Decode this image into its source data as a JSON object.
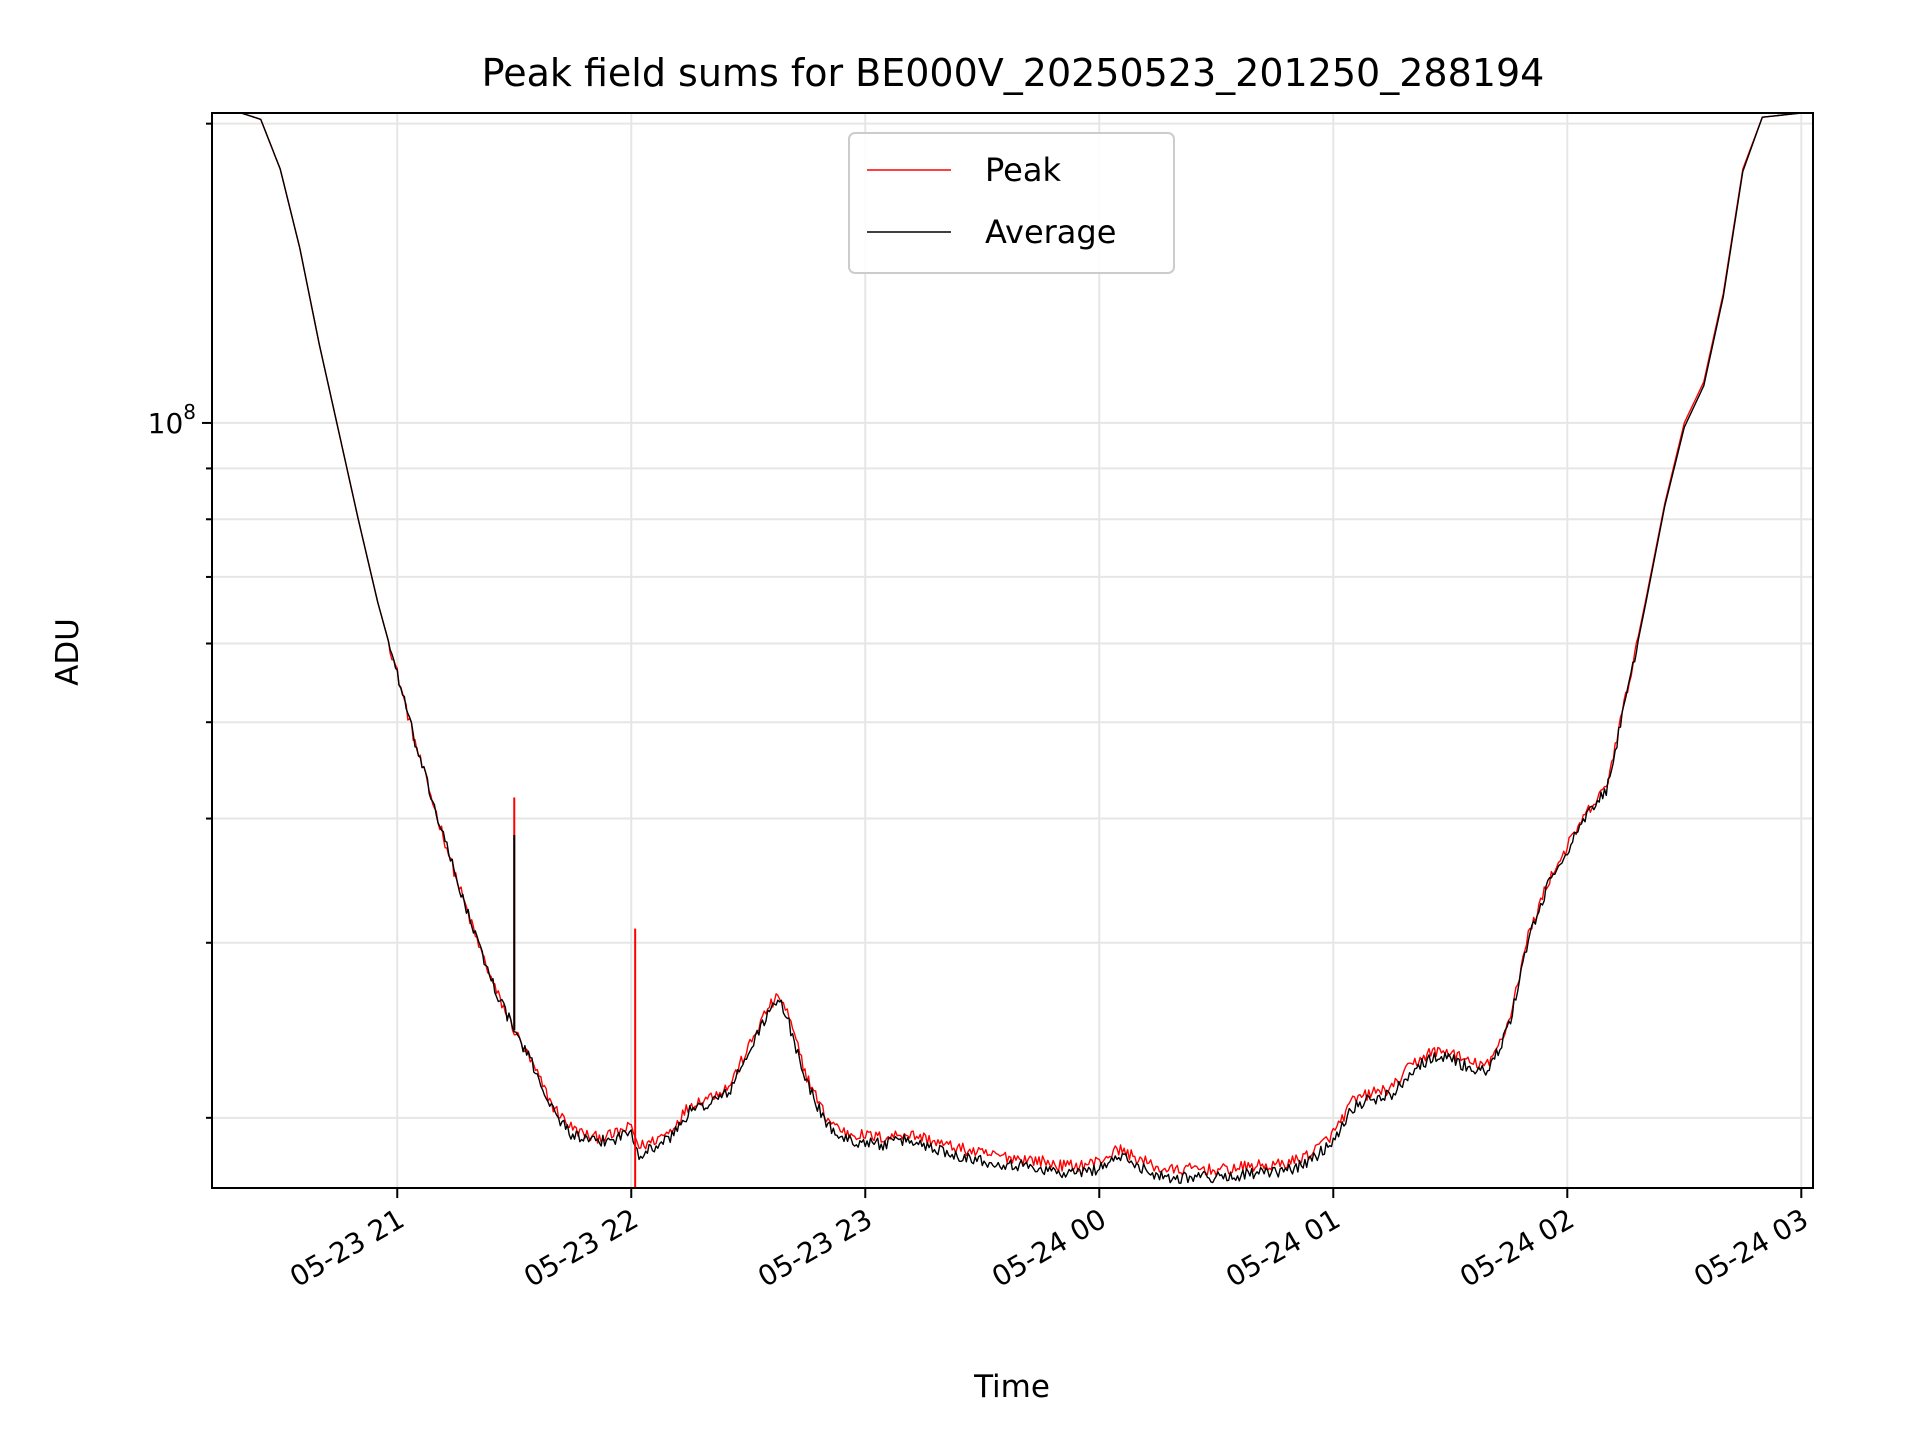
{
  "chart_data": {
    "type": "line",
    "title": "Peak field sums for BE000V_20250523_201250_288194",
    "xlabel": "Time",
    "ylabel": "ADU",
    "x_ticks": [
      "05-23 21",
      "05-23 22",
      "05-23 23",
      "05-24 00",
      "05-24 01",
      "05-24 02",
      "05-24 03"
    ],
    "y_tick_labels": [
      {
        "base": "10",
        "exp": "8",
        "value": 100000000
      }
    ],
    "y_scale": "log",
    "xlim": [
      "2025-05-23 20:12:30",
      "2025-05-24 03:03:00"
    ],
    "ylim": [
      17000000,
      205000000
    ],
    "grid": true,
    "legend_position": "top-center",
    "x": [
      "20:12",
      "20:20",
      "20:25",
      "20:30",
      "20:35",
      "20:40",
      "20:45",
      "20:50",
      "20:55",
      "21:00",
      "21:05",
      "21:10",
      "21:15",
      "21:20",
      "21:25",
      "21:30",
      "21:35",
      "21:40",
      "21:45",
      "21:50",
      "21:55",
      "22:00",
      "22:02",
      "22:05",
      "22:10",
      "22:15",
      "22:20",
      "22:25",
      "22:30",
      "22:35",
      "22:38",
      "22:40",
      "22:45",
      "22:50",
      "22:55",
      "23:00",
      "23:05",
      "23:10",
      "23:15",
      "23:20",
      "23:25",
      "23:30",
      "23:35",
      "23:40",
      "23:45",
      "23:50",
      "23:55",
      "00:00",
      "00:05",
      "00:10",
      "00:15",
      "00:20",
      "00:25",
      "00:30",
      "00:35",
      "00:40",
      "00:45",
      "00:50",
      "00:55",
      "01:00",
      "01:05",
      "01:10",
      "01:15",
      "01:20",
      "01:25",
      "01:30",
      "01:35",
      "01:40",
      "01:45",
      "01:50",
      "01:55",
      "02:00",
      "02:05",
      "02:10",
      "02:15",
      "02:20",
      "02:25",
      "02:30",
      "02:35",
      "02:40",
      "02:45",
      "02:50",
      "03:00"
    ],
    "series": [
      {
        "name": "Peak",
        "color": "#ff0000",
        "values": [
          205000000,
          205000000,
          202000000,
          180000000,
          150000000,
          120000000,
          98000000,
          80000000,
          66000000,
          56000000,
          47000000,
          40500000,
          35000000,
          30500000,
          27000000,
          24500000,
          22500000,
          20500000,
          19500000,
          19100000,
          19200000,
          19600000,
          18700000,
          18900000,
          19400000,
          20600000,
          21000000,
          21500000,
          23500000,
          25800000,
          26500000,
          25500000,
          22000000,
          20000000,
          19300000,
          19200000,
          19100000,
          19300000,
          19100000,
          18800000,
          18600000,
          18400000,
          18300000,
          18200000,
          18100000,
          17900000,
          17900000,
          18100000,
          18600000,
          18200000,
          17800000,
          17700000,
          17800000,
          17700000,
          17800000,
          17900000,
          17900000,
          18100000,
          18500000,
          19300000,
          20800000,
          21200000,
          21400000,
          22600000,
          23300000,
          23300000,
          22700000,
          22600000,
          25000000,
          30500000,
          34500000,
          37500000,
          40500000,
          43000000,
          53000000,
          66000000,
          83000000,
          100000000,
          110000000,
          135000000,
          180000000,
          203000000,
          205000000
        ]
      },
      {
        "name": "Average",
        "color": "#000000",
        "values": [
          205000000,
          205000000,
          202000000,
          180000000,
          150000000,
          120000000,
          98000000,
          80000000,
          66000000,
          56000000,
          47000000,
          40500000,
          35000000,
          30500000,
          27000000,
          24500000,
          22500000,
          20300000,
          19200000,
          18900000,
          19000000,
          19400000,
          18400000,
          18600000,
          19100000,
          20300000,
          20700000,
          21200000,
          23200000,
          25500000,
          26200000,
          25200000,
          21700000,
          19700000,
          19000000,
          18900000,
          18800000,
          19000000,
          18800000,
          18500000,
          18300000,
          18100000,
          18000000,
          17900000,
          17800000,
          17600000,
          17600000,
          17800000,
          18300000,
          17900000,
          17500000,
          17400000,
          17500000,
          17400000,
          17500000,
          17600000,
          17600000,
          17800000,
          18200000,
          19000000,
          20500000,
          20900000,
          21100000,
          22300000,
          23000000,
          23000000,
          22400000,
          22300000,
          24700000,
          30200000,
          34200000,
          37200000,
          40200000,
          42700000,
          52500000,
          65500000,
          82500000,
          99000000,
          109000000,
          134000000,
          179000000,
          203000000,
          205000000
        ]
      }
    ],
    "spikes": [
      {
        "series": "Peak",
        "x": "21:30",
        "value": 42000000
      },
      {
        "series": "Average",
        "x": "21:30",
        "value": 38500000
      },
      {
        "series": "Peak",
        "x": "22:01",
        "value": 31000000
      }
    ]
  }
}
